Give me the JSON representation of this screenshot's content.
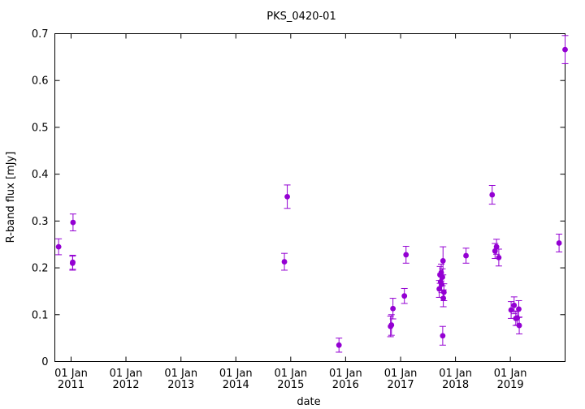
{
  "chart_data": {
    "type": "scatter",
    "title": "PKS_0420-01",
    "xlabel": "date",
    "ylabel": "R-band flux [mJy]",
    "ylim": [
      0,
      0.7
    ],
    "xlim": [
      "2010-09-15",
      "2019-12-31"
    ],
    "grid": false,
    "legend": "none",
    "color": "#9400d3",
    "y_ticks": [
      "0",
      "0.1",
      "0.2",
      "0.3",
      "0.4",
      "0.5",
      "0.6",
      "0.7"
    ],
    "x_ticks": [
      {
        "date": "2011-01-01",
        "line1": "01 Jan",
        "line2": "2011"
      },
      {
        "date": "2012-01-01",
        "line1": "01 Jan",
        "line2": "2012"
      },
      {
        "date": "2013-01-01",
        "line1": "01 Jan",
        "line2": "2013"
      },
      {
        "date": "2014-01-01",
        "line1": "01 Jan",
        "line2": "2014"
      },
      {
        "date": "2015-01-01",
        "line1": "01 Jan",
        "line2": "2015"
      },
      {
        "date": "2016-01-01",
        "line1": "01 Jan",
        "line2": "2016"
      },
      {
        "date": "2017-01-01",
        "line1": "01 Jan",
        "line2": "2017"
      },
      {
        "date": "2018-01-01",
        "line1": "01 Jan",
        "line2": "2018"
      },
      {
        "date": "2019-01-01",
        "line1": "01 Jan",
        "line2": "2019"
      }
    ],
    "points": [
      {
        "x": "2010-10-10",
        "y": 0.245,
        "err": 0.017
      },
      {
        "x": "2011-01-11",
        "y": 0.21,
        "err": 0.015
      },
      {
        "x": "2011-01-12",
        "y": 0.212,
        "err": 0.015
      },
      {
        "x": "2011-01-14",
        "y": 0.297,
        "err": 0.018
      },
      {
        "x": "2014-11-20",
        "y": 0.213,
        "err": 0.018
      },
      {
        "x": "2014-12-09",
        "y": 0.352,
        "err": 0.025
      },
      {
        "x": "2015-11-18",
        "y": 0.035,
        "err": 0.015
      },
      {
        "x": "2016-10-26",
        "y": 0.075,
        "err": 0.022
      },
      {
        "x": "2016-11-01",
        "y": 0.078,
        "err": 0.022
      },
      {
        "x": "2016-11-11",
        "y": 0.113,
        "err": 0.022
      },
      {
        "x": "2017-01-26",
        "y": 0.14,
        "err": 0.016
      },
      {
        "x": "2017-02-06",
        "y": 0.228,
        "err": 0.018
      },
      {
        "x": "2017-09-15",
        "y": 0.155,
        "err": 0.018
      },
      {
        "x": "2017-09-20",
        "y": 0.185,
        "err": 0.018
      },
      {
        "x": "2017-09-24",
        "y": 0.17,
        "err": 0.018
      },
      {
        "x": "2017-09-28",
        "y": 0.19,
        "err": 0.018
      },
      {
        "x": "2017-10-01",
        "y": 0.165,
        "err": 0.018
      },
      {
        "x": "2017-10-06",
        "y": 0.18,
        "err": 0.018
      },
      {
        "x": "2017-10-08",
        "y": 0.055,
        "err": 0.02
      },
      {
        "x": "2017-10-10",
        "y": 0.215,
        "err": 0.03
      },
      {
        "x": "2017-10-12",
        "y": 0.135,
        "err": 0.018
      },
      {
        "x": "2017-10-16",
        "y": 0.148,
        "err": 0.018
      },
      {
        "x": "2018-03-12",
        "y": 0.226,
        "err": 0.016
      },
      {
        "x": "2018-09-02",
        "y": 0.356,
        "err": 0.02
      },
      {
        "x": "2018-09-21",
        "y": 0.236,
        "err": 0.016
      },
      {
        "x": "2018-10-01",
        "y": 0.245,
        "err": 0.016
      },
      {
        "x": "2018-10-16",
        "y": 0.222,
        "err": 0.018
      },
      {
        "x": "2019-01-06",
        "y": 0.11,
        "err": 0.018
      },
      {
        "x": "2019-01-26",
        "y": 0.12,
        "err": 0.018
      },
      {
        "x": "2019-02-06",
        "y": 0.092,
        "err": 0.015
      },
      {
        "x": "2019-02-16",
        "y": 0.093,
        "err": 0.015
      },
      {
        "x": "2019-02-26",
        "y": 0.112,
        "err": 0.018
      },
      {
        "x": "2019-03-01",
        "y": 0.077,
        "err": 0.018
      },
      {
        "x": "2019-11-21",
        "y": 0.253,
        "err": 0.019
      },
      {
        "x": "2019-12-31",
        "y": 0.666,
        "err": 0.03
      }
    ]
  }
}
